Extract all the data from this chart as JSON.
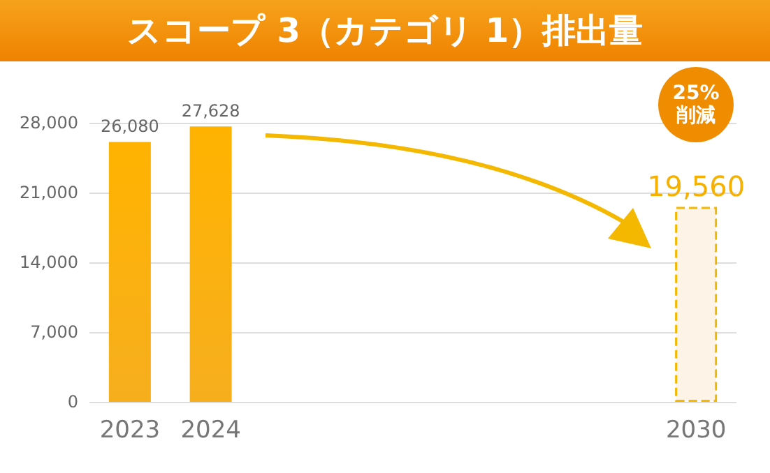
{
  "chart_data": {
    "type": "bar",
    "title": "スコープ 3（カテゴリ 1）排出量",
    "categories": [
      "2023",
      "2024",
      null,
      null,
      null,
      null,
      null,
      "2030"
    ],
    "series": [
      {
        "color": "#f5a300",
        "values": [
          26080,
          27628,
          null,
          null,
          null,
          null,
          null,
          null
        ],
        "value_labels": [
          "26,080",
          "27,628",
          null,
          null,
          null,
          null,
          null,
          null
        ]
      },
      {
        "color": "#fdf3e6",
        "line_style": "dashed",
        "values": [
          null,
          null,
          null,
          null,
          null,
          null,
          null,
          19560
        ],
        "value_labels": [
          null,
          null,
          null,
          null,
          null,
          null,
          null,
          "19,560"
        ]
      }
    ],
    "ylim": [
      0,
      28000
    ],
    "yticks": [
      {
        "value": 0,
        "label": "0"
      },
      {
        "value": 7000,
        "label": "7,000"
      },
      {
        "value": 14000,
        "label": "14,000"
      },
      {
        "value": 21000,
        "label": "21,000"
      },
      {
        "value": 28000,
        "label": "28,000"
      }
    ],
    "grid": "y",
    "annotations": [
      "25%削減"
    ]
  }
}
